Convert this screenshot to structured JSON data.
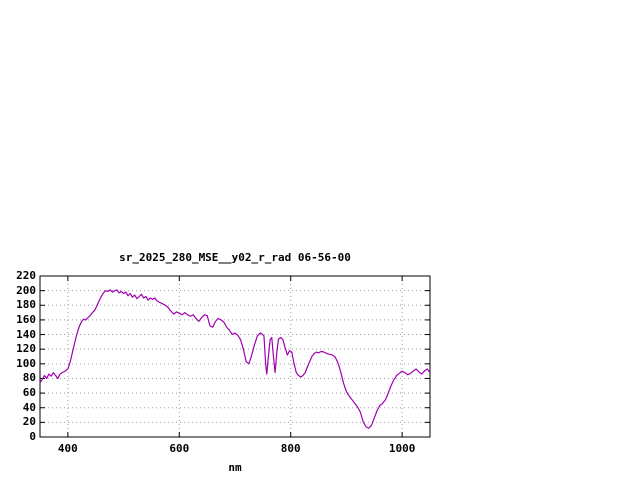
{
  "page": {
    "background_color": "#ffffff",
    "text_color": "#000000"
  },
  "chart_data": {
    "type": "line",
    "title": "sr_2025_280_MSE__y02_r_rad 06-56-00",
    "xlabel": "nm",
    "ylabel": "",
    "xlim": [
      350,
      1050
    ],
    "ylim": [
      0,
      220
    ],
    "xticks": [
      400,
      600,
      800,
      1000
    ],
    "yticks": [
      0,
      20,
      40,
      60,
      80,
      100,
      120,
      140,
      160,
      180,
      200,
      220
    ],
    "grid": true,
    "legend": "none",
    "line_color": "#a000b0",
    "grid_color": "#9e9e9e",
    "border_color": "#000000",
    "series": [
      {
        "name": "sr_2025_280_MSE__y02_r_rad",
        "points": [
          [
            350,
            74
          ],
          [
            355,
            80
          ],
          [
            358,
            84
          ],
          [
            362,
            80
          ],
          [
            366,
            86
          ],
          [
            370,
            83
          ],
          [
            374,
            88
          ],
          [
            378,
            84
          ],
          [
            382,
            80
          ],
          [
            386,
            86
          ],
          [
            390,
            88
          ],
          [
            395,
            90
          ],
          [
            400,
            93
          ],
          [
            404,
            102
          ],
          [
            408,
            115
          ],
          [
            412,
            128
          ],
          [
            416,
            140
          ],
          [
            420,
            150
          ],
          [
            424,
            157
          ],
          [
            428,
            161
          ],
          [
            432,
            160
          ],
          [
            436,
            163
          ],
          [
            440,
            166
          ],
          [
            444,
            170
          ],
          [
            448,
            173
          ],
          [
            452,
            179
          ],
          [
            456,
            186
          ],
          [
            460,
            192
          ],
          [
            464,
            197
          ],
          [
            468,
            200
          ],
          [
            472,
            199
          ],
          [
            476,
            201
          ],
          [
            480,
            198
          ],
          [
            484,
            200
          ],
          [
            488,
            201
          ],
          [
            492,
            197
          ],
          [
            496,
            199
          ],
          [
            500,
            196
          ],
          [
            504,
            198
          ],
          [
            508,
            193
          ],
          [
            512,
            196
          ],
          [
            516,
            191
          ],
          [
            520,
            194
          ],
          [
            524,
            189
          ],
          [
            528,
            192
          ],
          [
            532,
            195
          ],
          [
            536,
            190
          ],
          [
            540,
            192
          ],
          [
            544,
            187
          ],
          [
            548,
            190
          ],
          [
            552,
            188
          ],
          [
            556,
            190
          ],
          [
            560,
            186
          ],
          [
            565,
            184
          ],
          [
            570,
            182
          ],
          [
            575,
            180
          ],
          [
            580,
            177
          ],
          [
            585,
            172
          ],
          [
            590,
            168
          ],
          [
            595,
            171
          ],
          [
            600,
            169
          ],
          [
            605,
            167
          ],
          [
            610,
            170
          ],
          [
            615,
            167
          ],
          [
            620,
            165
          ],
          [
            625,
            167
          ],
          [
            630,
            162
          ],
          [
            635,
            158
          ],
          [
            640,
            163
          ],
          [
            645,
            167
          ],
          [
            650,
            166
          ],
          [
            655,
            152
          ],
          [
            660,
            150
          ],
          [
            665,
            158
          ],
          [
            670,
            162
          ],
          [
            675,
            160
          ],
          [
            680,
            157
          ],
          [
            685,
            150
          ],
          [
            690,
            146
          ],
          [
            695,
            140
          ],
          [
            700,
            142
          ],
          [
            705,
            139
          ],
          [
            710,
            133
          ],
          [
            715,
            120
          ],
          [
            720,
            103
          ],
          [
            725,
            100
          ],
          [
            730,
            112
          ],
          [
            735,
            126
          ],
          [
            740,
            138
          ],
          [
            745,
            142
          ],
          [
            748,
            141
          ],
          [
            752,
            138
          ],
          [
            755,
            100
          ],
          [
            757,
            86
          ],
          [
            760,
            110
          ],
          [
            763,
            133
          ],
          [
            766,
            136
          ],
          [
            769,
            110
          ],
          [
            772,
            88
          ],
          [
            775,
            115
          ],
          [
            778,
            134
          ],
          [
            782,
            136
          ],
          [
            786,
            133
          ],
          [
            790,
            122
          ],
          [
            794,
            112
          ],
          [
            798,
            118
          ],
          [
            802,
            116
          ],
          [
            806,
            100
          ],
          [
            810,
            88
          ],
          [
            814,
            84
          ],
          [
            818,
            82
          ],
          [
            822,
            84
          ],
          [
            826,
            88
          ],
          [
            830,
            96
          ],
          [
            834,
            103
          ],
          [
            838,
            110
          ],
          [
            842,
            114
          ],
          [
            846,
            116
          ],
          [
            850,
            115
          ],
          [
            855,
            117
          ],
          [
            860,
            116
          ],
          [
            865,
            114
          ],
          [
            870,
            113
          ],
          [
            875,
            112
          ],
          [
            880,
            109
          ],
          [
            885,
            101
          ],
          [
            890,
            88
          ],
          [
            895,
            73
          ],
          [
            900,
            62
          ],
          [
            905,
            56
          ],
          [
            910,
            51
          ],
          [
            915,
            46
          ],
          [
            920,
            41
          ],
          [
            925,
            34
          ],
          [
            930,
            21
          ],
          [
            935,
            14
          ],
          [
            940,
            12
          ],
          [
            945,
            16
          ],
          [
            950,
            26
          ],
          [
            955,
            36
          ],
          [
            960,
            43
          ],
          [
            965,
            46
          ],
          [
            970,
            51
          ],
          [
            975,
            60
          ],
          [
            980,
            70
          ],
          [
            985,
            78
          ],
          [
            990,
            84
          ],
          [
            995,
            87
          ],
          [
            1000,
            90
          ],
          [
            1005,
            88
          ],
          [
            1010,
            85
          ],
          [
            1015,
            87
          ],
          [
            1020,
            90
          ],
          [
            1025,
            93
          ],
          [
            1030,
            89
          ],
          [
            1035,
            86
          ],
          [
            1040,
            90
          ],
          [
            1045,
            93
          ],
          [
            1050,
            88
          ]
        ]
      }
    ]
  }
}
